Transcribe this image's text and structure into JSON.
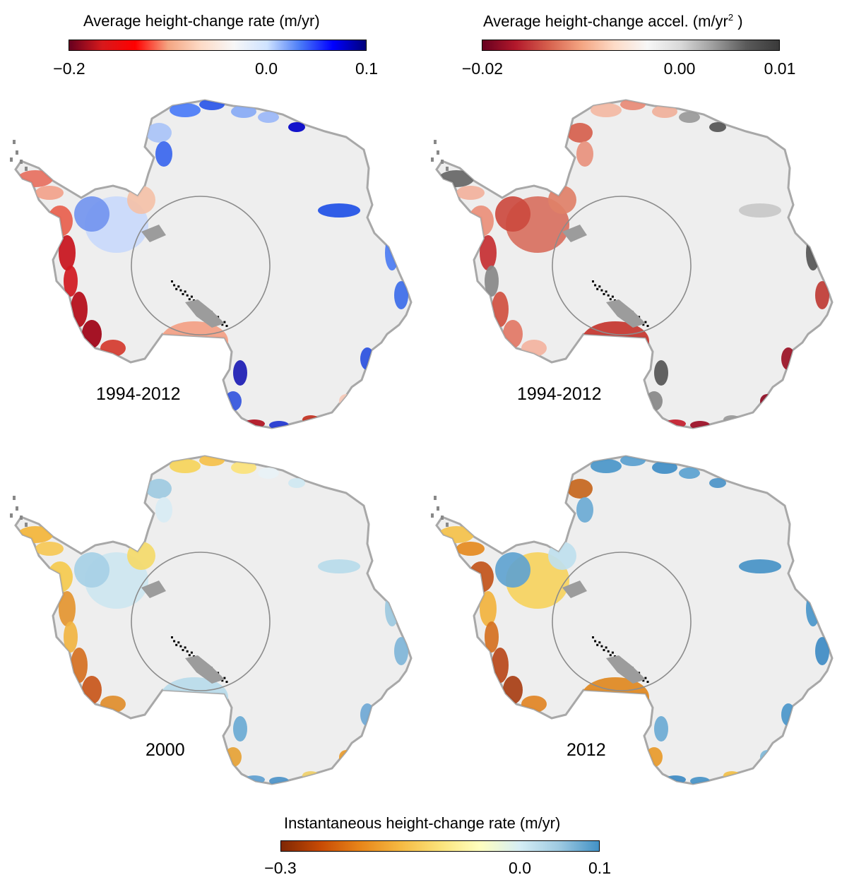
{
  "colorbars": {
    "rate": {
      "title": "Average height-change rate (m/yr)",
      "ticks": [
        "−0.2",
        "0.0",
        "0.1"
      ],
      "tick_values": [
        -0.2,
        0.0,
        0.1
      ],
      "range": [
        -0.2,
        0.1
      ],
      "colors": [
        "#67001f",
        "#d7191c",
        "#ff0000",
        "#f4a582",
        "#fddbc7",
        "#f7f7f7",
        "#cfe3ff",
        "#4a7bf7",
        "#0000ff",
        "#00007a"
      ]
    },
    "accel": {
      "title_main": "Average height-change accel. (m/yr",
      "title_sup": "2",
      "title_end": " )",
      "ticks": [
        "−0.02",
        "0.00",
        "0.01"
      ],
      "tick_values": [
        -0.02,
        0.0,
        0.01
      ],
      "range": [
        -0.02,
        0.01
      ],
      "colors": [
        "#67001f",
        "#b2182b",
        "#d6604d",
        "#f4a582",
        "#fddbc7",
        "#f7f7f7",
        "#d9d9d9",
        "#9e9e9e",
        "#5a5a5a",
        "#3a3a3a"
      ]
    },
    "inst": {
      "title": "Instantaneous height-change rate (m/yr)",
      "ticks": [
        "−0.3",
        "0.0",
        "0.1"
      ],
      "tick_values": [
        -0.3,
        0.0,
        0.1
      ],
      "range": [
        -0.3,
        0.1
      ],
      "colors": [
        "#7f2704",
        "#c84b05",
        "#e8861a",
        "#f5b942",
        "#fbe37a",
        "#ffffbf",
        "#d6eef5",
        "#9ecae1",
        "#4292c6"
      ]
    }
  },
  "panels": [
    {
      "id": "rate-1994-2012",
      "label": "1994-2012",
      "scheme": "rate"
    },
    {
      "id": "accel-1994-2012",
      "label": "1994-2012",
      "scheme": "accel"
    },
    {
      "id": "inst-2000",
      "label": "2000",
      "scheme": "inst2000"
    },
    {
      "id": "inst-2012",
      "label": "2012",
      "scheme": "inst2012"
    }
  ],
  "map_colors": {
    "land": "#eeeeee",
    "coast_outline": "#a8a8a8",
    "circle_outline": "#8c8c8c",
    "rock": "#000000",
    "ocean": "#ffffff"
  }
}
